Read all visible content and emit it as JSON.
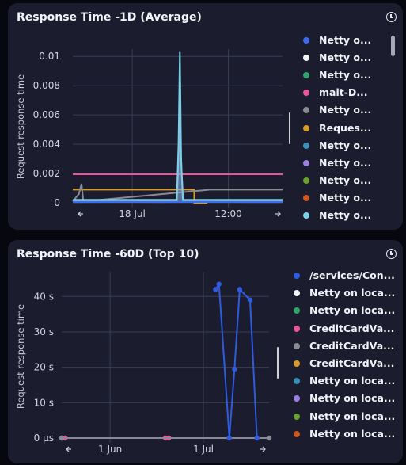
{
  "panel1": {
    "title": "Response Time -1D (Average)",
    "legend": [
      {
        "label": "Netty o...",
        "color": "#3b6bf0"
      },
      {
        "label": "Netty o...",
        "color": "#f4f4f4"
      },
      {
        "label": "Netty o...",
        "color": "#2fa46a"
      },
      {
        "label": "mait-D...",
        "color": "#e8559a"
      },
      {
        "label": "Netty o...",
        "color": "#8a8a94"
      },
      {
        "label": "Reques...",
        "color": "#d89b28"
      },
      {
        "label": "Netty o...",
        "color": "#3a8fb8"
      },
      {
        "label": "Netty o...",
        "color": "#9c7ee0"
      },
      {
        "label": "Netty o...",
        "color": "#6aa02e"
      },
      {
        "label": "Netty o...",
        "color": "#c8581e"
      },
      {
        "label": "Netty o...",
        "color": "#7ad0e4"
      }
    ]
  },
  "panel2": {
    "title": "Response Time -60D (Top 10)",
    "legend": [
      {
        "label": "/services/Con...",
        "color": "#2f5be0"
      },
      {
        "label": "Netty on loca...",
        "color": "#f4f4f4"
      },
      {
        "label": "Netty on loca...",
        "color": "#2fa46a"
      },
      {
        "label": "CreditCardVa...",
        "color": "#e8559a"
      },
      {
        "label": "CreditCardVa...",
        "color": "#8a8a94"
      },
      {
        "label": "CreditCardVa...",
        "color": "#d89b28"
      },
      {
        "label": "Netty on loca...",
        "color": "#3a8fb8"
      },
      {
        "label": "Netty on loca...",
        "color": "#9c7ee0"
      },
      {
        "label": "Netty on loca...",
        "color": "#6aa02e"
      },
      {
        "label": "Netty on loca...",
        "color": "#c8581e"
      }
    ]
  },
  "chart_data": [
    {
      "type": "line",
      "title": "Response Time -1D (Average)",
      "ylabel": "Request response time",
      "y_ticks": [
        "0",
        "0.002",
        "0.004",
        "0.006",
        "0.008",
        "0.01"
      ],
      "x_ticks": [
        "18 Jul",
        "12:00"
      ],
      "ylim": [
        0,
        0.0105
      ],
      "xlim": [
        0,
        24
      ],
      "grid": true,
      "legend_position": "right",
      "series": [
        {
          "name": "mait-D...",
          "color": "#e8559a",
          "x": [
            0,
            24
          ],
          "y": [
            0.00195,
            0.00195
          ]
        },
        {
          "name": "Reques...",
          "color": "#d89b28",
          "x": [
            0,
            13.9,
            13.9,
            15.4
          ],
          "y": [
            0.0009,
            0.0009,
            0,
            0
          ]
        },
        {
          "name": "Netty o...",
          "color": "#8a8a94",
          "x": [
            0,
            0.7,
            1.0,
            1.2,
            1.3,
            15.7,
            24
          ],
          "y": [
            0.0001,
            0.0006,
            0.0013,
            0.0001,
            0.0001,
            0.0009,
            0.0009
          ]
        },
        {
          "name": "Netty o...",
          "color": "#9c7ee0",
          "x": [
            0,
            11.9,
            12.05,
            12.25,
            12.45,
            12.65,
            24
          ],
          "y": [
            0.00015,
            0.00015,
            0.002,
            0.0059,
            0.002,
            0.00015,
            0.00015
          ]
        },
        {
          "name": "Netty o...",
          "color": "#7ad0e4",
          "x": [
            0,
            11.9,
            12.1,
            12.25,
            12.4,
            12.6,
            24
          ],
          "y": [
            0.0002,
            0.0002,
            0.004,
            0.0103,
            0.003,
            0.0002,
            0.0002
          ]
        },
        {
          "name": "Netty o...",
          "color": "#3b6bf0",
          "x": [
            0,
            5,
            10,
            15,
            20,
            24
          ],
          "y": [
            5e-05,
            6e-05,
            5e-05,
            6e-05,
            5e-05,
            5e-05
          ]
        }
      ]
    },
    {
      "type": "line",
      "title": "Response Time -60D (Top 10)",
      "ylabel": "Request response time",
      "y_ticks": [
        "0 µs",
        "10 s",
        "20 s",
        "30 s",
        "40 s"
      ],
      "x_ticks": [
        "1 Jun",
        "1 Jul"
      ],
      "ylim": [
        0,
        47
      ],
      "xlim": [
        0,
        60
      ],
      "grid": true,
      "legend_position": "right",
      "series": [
        {
          "name": "CreditCardVa...",
          "color": "#e8559a",
          "x": [
            0,
            1,
            30,
            31
          ],
          "y": [
            0,
            0,
            0,
            0
          ]
        },
        {
          "name": "CreditCardVa...",
          "color": "#8a8a94",
          "x": [
            0,
            60
          ],
          "y": [
            0,
            0
          ]
        },
        {
          "name": "/services/Con...",
          "color": "#2f5be0",
          "x": [
            44.5,
            45.5,
            48.5,
            50,
            51.5,
            54.5,
            56.5
          ],
          "y": [
            42,
            43.5,
            0,
            19.5,
            42,
            39,
            0
          ]
        }
      ]
    }
  ]
}
